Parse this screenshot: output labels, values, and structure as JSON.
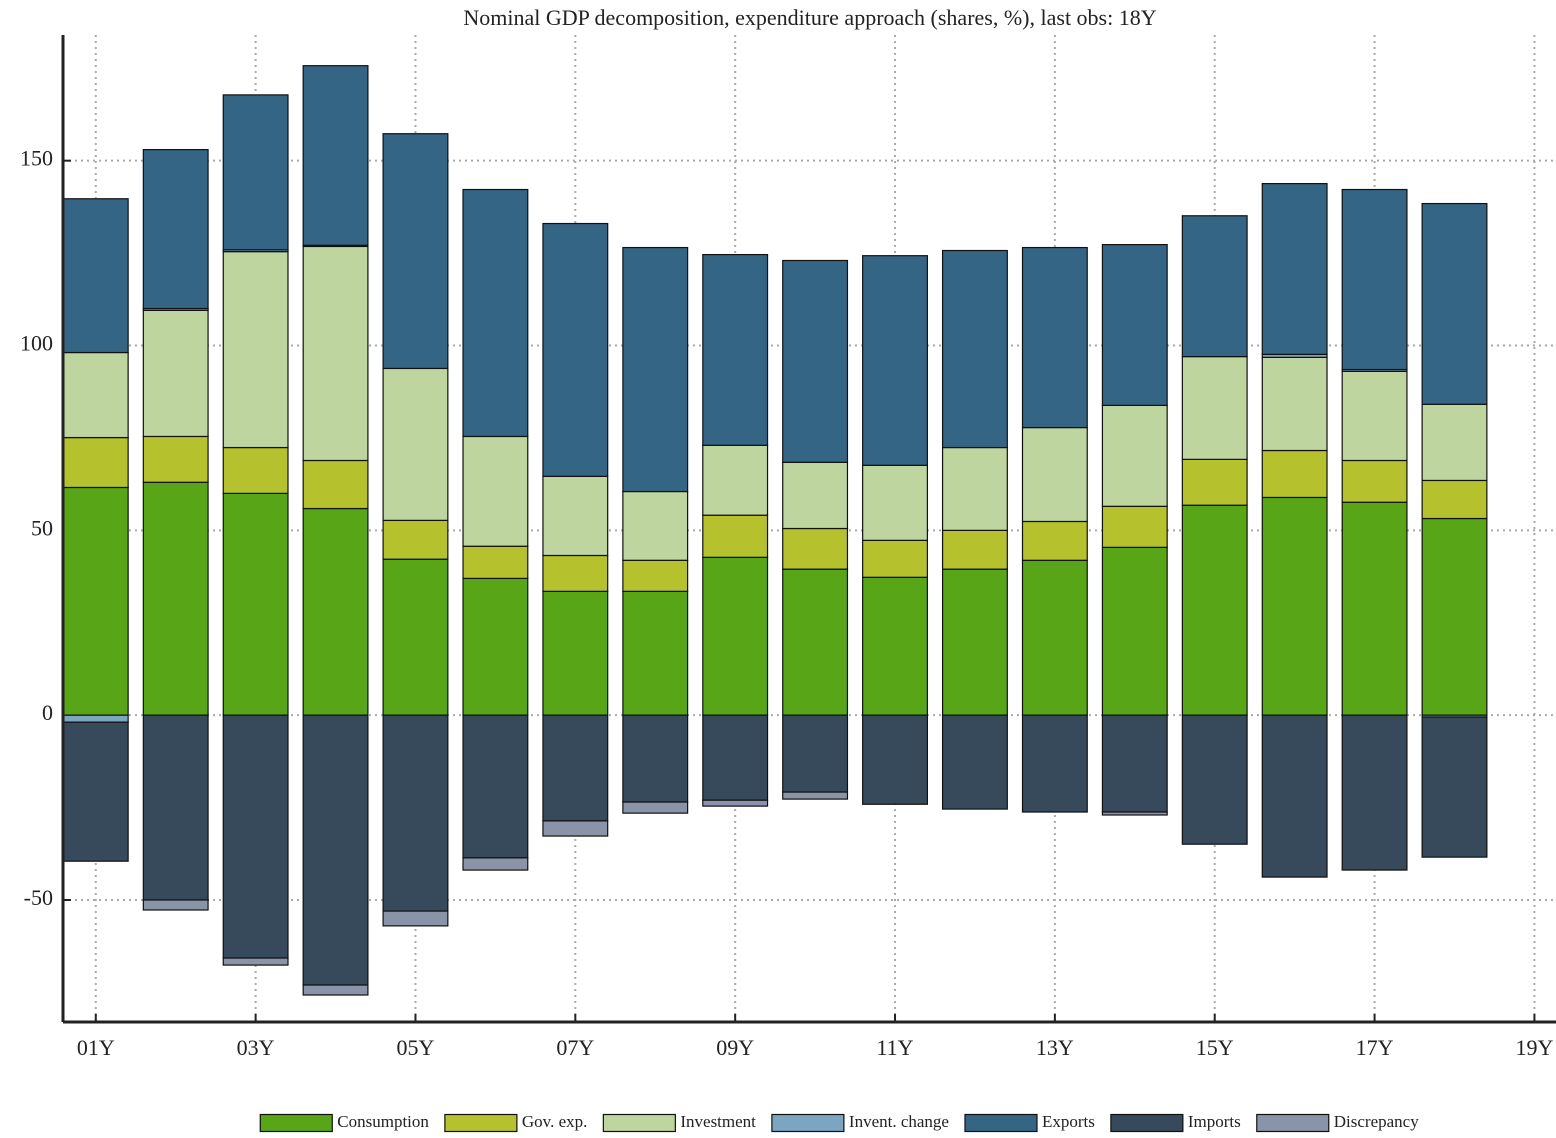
{
  "chart_data": {
    "type": "stacked-bar",
    "title": "Nominal GDP decomposition, expenditure approach (shares, %), last obs: 18Y",
    "x": [
      1,
      2,
      3,
      4,
      5,
      6,
      7,
      8,
      9,
      10,
      11,
      12,
      13,
      14,
      15,
      16,
      17,
      18
    ],
    "xlim": [
      0.59,
      19.27
    ],
    "xticks": [
      {
        "value": 1,
        "label": "01Y"
      },
      {
        "value": 3,
        "label": "03Y"
      },
      {
        "value": 5,
        "label": "05Y"
      },
      {
        "value": 7,
        "label": "07Y"
      },
      {
        "value": 9,
        "label": "09Y"
      },
      {
        "value": 11,
        "label": "11Y"
      },
      {
        "value": 13,
        "label": "13Y"
      },
      {
        "value": 15,
        "label": "15Y"
      },
      {
        "value": 17,
        "label": "17Y"
      },
      {
        "value": 19,
        "label": "19Y"
      }
    ],
    "ylim": [
      -83,
      184
    ],
    "yticks": [
      -50,
      0,
      50,
      100,
      150
    ],
    "grid": true,
    "legend": "bottom",
    "series": [
      {
        "name": "Consumption",
        "color": "#58a518",
        "values": [
          61.6,
          63.0,
          60.0,
          55.9,
          42.2,
          37.0,
          33.5,
          33.5,
          42.7,
          39.5,
          37.3,
          39.5,
          41.9,
          45.4,
          56.8,
          58.9,
          57.6,
          53.2
        ]
      },
      {
        "name": "Gov. exp.",
        "color": "#b5c22d",
        "values": [
          13.5,
          12.4,
          12.4,
          13.0,
          10.5,
          8.7,
          9.7,
          8.4,
          11.4,
          11.0,
          10.0,
          10.5,
          10.5,
          11.1,
          12.4,
          12.7,
          11.3,
          10.3
        ]
      },
      {
        "name": "Investment",
        "color": "#bfd59f",
        "values": [
          23.0,
          34.1,
          53.0,
          57.9,
          41.1,
          29.7,
          21.4,
          18.6,
          18.9,
          17.9,
          20.3,
          22.4,
          25.4,
          27.3,
          27.8,
          25.2,
          24.1,
          20.6
        ]
      },
      {
        "name": "Invent. change",
        "color": "#7ba5c1",
        "values": [
          -1.9,
          0.5,
          0.5,
          0.3,
          0,
          0,
          0,
          0,
          0,
          0,
          0,
          0,
          0,
          0,
          0,
          0.8,
          0.5,
          -0.5
        ]
      },
      {
        "name": "Exports",
        "color": "#356584",
        "values": [
          41.6,
          43.0,
          41.9,
          48.6,
          63.5,
          66.8,
          68.4,
          66.0,
          51.6,
          54.6,
          56.7,
          53.3,
          48.7,
          43.5,
          38.1,
          46.2,
          48.7,
          54.3
        ]
      },
      {
        "name": "Imports",
        "color": "#374a5c",
        "values": [
          -37.6,
          -50.0,
          -65.7,
          -73.0,
          -53.0,
          -38.6,
          -28.6,
          -23.5,
          -23.0,
          -20.8,
          -24.1,
          -25.4,
          -26.2,
          -26.2,
          -34.9,
          -43.8,
          -41.9,
          -37.9
        ]
      },
      {
        "name": "Discrepancy",
        "color": "#8a94a8",
        "values": [
          0,
          -2.7,
          -1.9,
          -2.7,
          -4.0,
          -3.3,
          -4.1,
          -3.0,
          -1.6,
          -1.9,
          0,
          0,
          0,
          -0.8,
          0,
          0,
          0,
          0
        ]
      }
    ]
  }
}
